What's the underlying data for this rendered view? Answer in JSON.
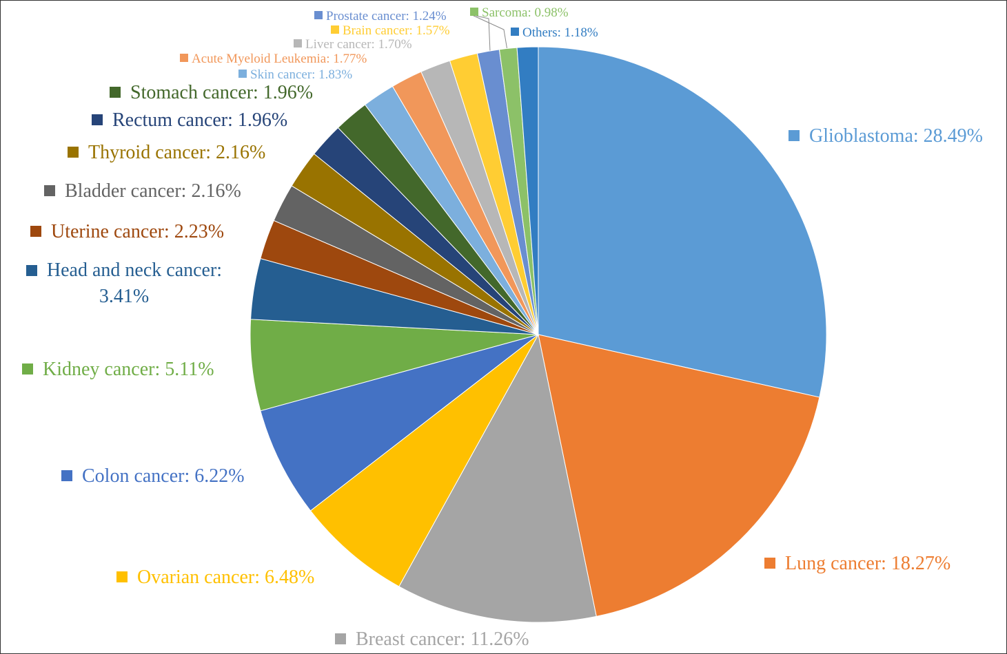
{
  "chart_data": {
    "type": "pie",
    "value_labels": [
      "Glioblastoma: 28.49%",
      "Lung cancer: 18.27%",
      "Breast cancer: 11.26%",
      "Ovarian cancer: 6.48%",
      "Colon cancer: 6.22%",
      "Kidney cancer: 5.11%",
      "Head and neck cancer: 3.41%",
      "Uterine cancer: 2.23%",
      "Bladder cancer: 2.16%",
      "Thyroid cancer: 2.16%",
      "Rectum cancer: 1.96%",
      "Stomach cancer: 1.96%",
      "Skin cancer: 1.83%",
      "Acute Myeloid Leukemia: 1.77%",
      "Liver cancer: 1.70%",
      "Brain cancer: 1.57%",
      "Prostate cancer: 1.24%",
      "Sarcoma: 0.98%",
      "Others: 1.18%"
    ],
    "values": [
      28.49,
      18.27,
      11.26,
      6.48,
      6.22,
      5.11,
      3.41,
      2.23,
      2.16,
      2.16,
      1.96,
      1.96,
      1.83,
      1.77,
      1.7,
      1.57,
      1.24,
      0.98,
      1.18
    ],
    "colors": [
      "#5b9bd5",
      "#ed7d31",
      "#a5a5a5",
      "#ffc000",
      "#4472c4",
      "#70ad47",
      "#255e91",
      "#9e480e",
      "#636363",
      "#997300",
      "#264478",
      "#43682b",
      "#7cafdd",
      "#f1975a",
      "#b7b7b7",
      "#ffcd33",
      "#698ed0",
      "#8cc168",
      "#327dc2"
    ]
  }
}
